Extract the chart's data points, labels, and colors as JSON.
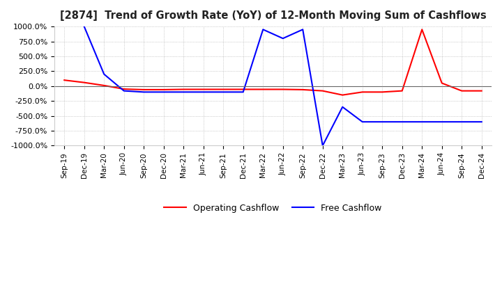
{
  "title": "[2874]  Trend of Growth Rate (YoY) of 12-Month Moving Sum of Cashflows",
  "ylim": [
    -1000,
    1000
  ],
  "yticks": [
    -1000,
    -750,
    -500,
    -250,
    0,
    250,
    500,
    750,
    1000
  ],
  "ytick_labels": [
    "-1000.0%",
    "-750.0%",
    "-500.0%",
    "-250.0%",
    "0.0%",
    "250.0%",
    "500.0%",
    "750.0%",
    "1000.0%"
  ],
  "x_labels": [
    "Sep-19",
    "Dec-19",
    "Mar-20",
    "Jun-20",
    "Sep-20",
    "Dec-20",
    "Mar-21",
    "Jun-21",
    "Sep-21",
    "Dec-21",
    "Mar-22",
    "Jun-22",
    "Sep-22",
    "Dec-22",
    "Mar-23",
    "Jun-23",
    "Sep-23",
    "Dec-23",
    "Mar-24",
    "Jun-24",
    "Sep-24",
    "Dec-24"
  ],
  "operating_cashflow": [
    100,
    60,
    10,
    -50,
    -60,
    -60,
    -55,
    -55,
    -55,
    -55,
    -55,
    -55,
    -60,
    -80,
    -150,
    -100,
    -100,
    -80,
    950,
    50,
    -80,
    -80
  ],
  "free_cashflow": [
    null,
    1000,
    200,
    -80,
    -100,
    -100,
    -100,
    -100,
    -100,
    -100,
    950,
    800,
    950,
    -1000,
    -350,
    -600,
    -600,
    -600,
    -600,
    -600,
    -600,
    -600
  ],
  "operating_color": "#ff0000",
  "free_color": "#0000ff",
  "background_color": "#ffffff",
  "grid_color": "#aaaaaa",
  "title_color": "#222222",
  "legend_labels": [
    "Operating Cashflow",
    "Free Cashflow"
  ],
  "line_width": 1.5
}
